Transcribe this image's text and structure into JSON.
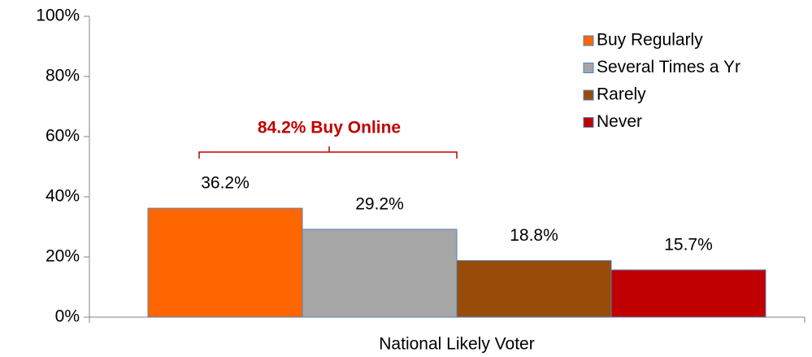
{
  "chart_data": {
    "type": "bar",
    "categories": [
      "National Likely Voter"
    ],
    "series": [
      {
        "name": "Buy Regularly",
        "color": "#ff6600",
        "values": [
          36.2
        ],
        "value_labels": [
          "36.2%"
        ]
      },
      {
        "name": "Several Times a Yr",
        "color": "#a6a6a6",
        "values": [
          29.2
        ],
        "value_labels": [
          "29.2%"
        ]
      },
      {
        "name": "Rarely",
        "color": "#994c0a",
        "values": [
          18.8
        ],
        "value_labels": [
          "18.8%"
        ]
      },
      {
        "name": "Never",
        "color": "#c00000",
        "values": [
          15.7
        ],
        "value_labels": [
          "15.7%"
        ]
      }
    ],
    "ylim": [
      0,
      100
    ],
    "yticks": [
      {
        "value": 0,
        "label": "0%"
      },
      {
        "value": 20,
        "label": "20%"
      },
      {
        "value": 40,
        "label": "40%"
      },
      {
        "value": 60,
        "label": "60%"
      },
      {
        "value": 80,
        "label": "80%"
      },
      {
        "value": 100,
        "label": "100%"
      }
    ],
    "grid": false,
    "legend": "top-right",
    "annotation": "84.2% Buy Online"
  }
}
